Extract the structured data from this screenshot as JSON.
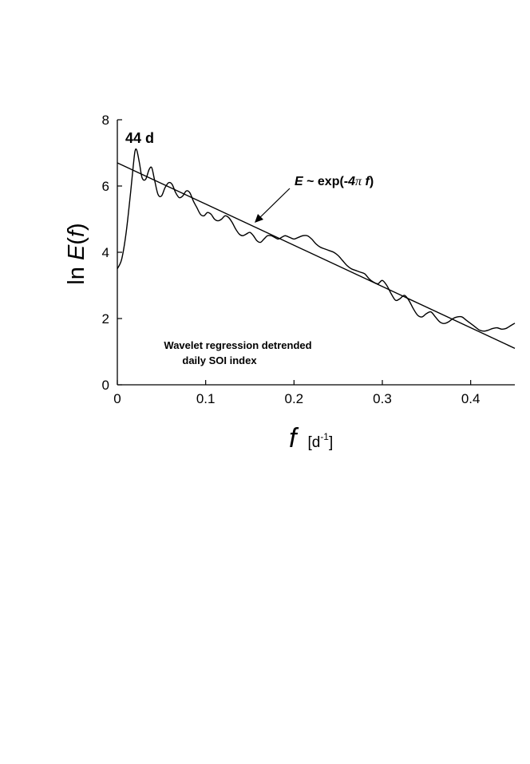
{
  "chart_data": {
    "type": "line",
    "xlabel_main": "f",
    "xlabel_unit_open": "[d",
    "xlabel_unit_exp": "-1",
    "xlabel_unit_close": "]",
    "ylabel_prefix": "ln ",
    "ylabel_E": "E",
    "ylabel_open": "(",
    "ylabel_f": "f",
    "ylabel_close": ")",
    "xlim": [
      0,
      0.45
    ],
    "ylim": [
      0,
      8
    ],
    "x_ticks": [
      0,
      0.1,
      0.2,
      0.3,
      0.4
    ],
    "x_tick_labels": [
      "0",
      "0.1",
      "0.2",
      "0.3",
      "0.4"
    ],
    "y_ticks": [
      0,
      2,
      4,
      6,
      8
    ],
    "y_tick_labels": [
      "0",
      "2",
      "4",
      "6",
      "8"
    ],
    "grid": false,
    "series": [
      {
        "kind": "spectrum",
        "x": [
          0,
          0.005,
          0.01,
          0.015,
          0.018,
          0.02,
          0.022,
          0.025,
          0.028,
          0.032,
          0.036,
          0.039,
          0.042,
          0.046,
          0.05,
          0.054,
          0.058,
          0.062,
          0.066,
          0.07,
          0.074,
          0.078,
          0.082,
          0.086,
          0.09,
          0.094,
          0.098,
          0.102,
          0.106,
          0.11,
          0.114,
          0.118,
          0.122,
          0.126,
          0.13,
          0.134,
          0.138,
          0.142,
          0.146,
          0.15,
          0.154,
          0.158,
          0.162,
          0.166,
          0.17,
          0.174,
          0.178,
          0.182,
          0.186,
          0.19,
          0.195,
          0.2,
          0.205,
          0.21,
          0.215,
          0.22,
          0.225,
          0.23,
          0.235,
          0.24,
          0.245,
          0.25,
          0.255,
          0.26,
          0.265,
          0.27,
          0.275,
          0.28,
          0.285,
          0.29,
          0.295,
          0.3,
          0.305,
          0.31,
          0.315,
          0.32,
          0.325,
          0.33,
          0.335,
          0.34,
          0.345,
          0.35,
          0.355,
          0.36,
          0.365,
          0.37,
          0.375,
          0.38,
          0.385,
          0.39,
          0.395,
          0.4,
          0.405,
          0.41,
          0.415,
          0.42,
          0.425,
          0.43,
          0.435,
          0.44,
          0.445,
          0.45
        ],
        "y": [
          3.5,
          3.8,
          4.6,
          5.8,
          6.6,
          7.05,
          7.08,
          6.7,
          6.25,
          6.2,
          6.5,
          6.55,
          6.2,
          5.75,
          5.7,
          5.95,
          6.1,
          6.05,
          5.8,
          5.65,
          5.7,
          5.85,
          5.8,
          5.55,
          5.35,
          5.15,
          5.1,
          5.2,
          5.15,
          5.0,
          4.95,
          5.0,
          5.1,
          5.05,
          4.9,
          4.7,
          4.55,
          4.5,
          4.55,
          4.6,
          4.5,
          4.35,
          4.3,
          4.4,
          4.5,
          4.5,
          4.45,
          4.4,
          4.45,
          4.5,
          4.45,
          4.4,
          4.45,
          4.5,
          4.5,
          4.4,
          4.25,
          4.15,
          4.1,
          4.05,
          4.0,
          3.9,
          3.75,
          3.6,
          3.5,
          3.45,
          3.4,
          3.35,
          3.2,
          3.1,
          3.05,
          3.15,
          3.0,
          2.75,
          2.55,
          2.6,
          2.7,
          2.55,
          2.3,
          2.1,
          2.05,
          2.15,
          2.2,
          2.05,
          1.9,
          1.85,
          1.9,
          2.0,
          2.05,
          2.05,
          1.95,
          1.85,
          1.75,
          1.65,
          1.62,
          1.65,
          1.7,
          1.72,
          1.68,
          1.7,
          1.78,
          1.86
        ]
      },
      {
        "kind": "regression",
        "x": [
          0,
          0.45
        ],
        "y": [
          6.7,
          1.1
        ]
      }
    ],
    "annotations": {
      "peak_label": "44 d",
      "fit_E": "E",
      "fit_mid": " ~ exp(-",
      "fit_four": "4",
      "fit_pi": "π",
      "fit_space": " ",
      "fit_f": "f",
      "fit_close": ")",
      "caption_line1": "Wavelet regression detrended",
      "caption_line2": "daily SOI index"
    }
  }
}
